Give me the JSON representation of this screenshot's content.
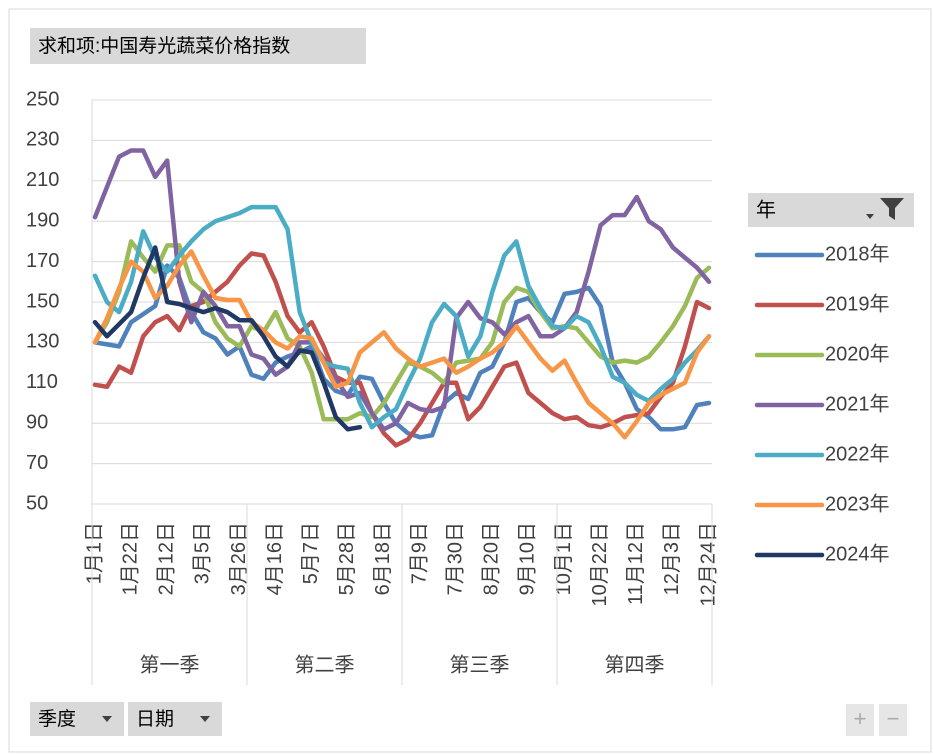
{
  "chart_data": {
    "type": "line",
    "title": "求和项:中国寿光蔬菜价格指数",
    "legend_title": "年",
    "legend": "right",
    "field_buttons": [
      "季度",
      "日期"
    ],
    "quarters": [
      "第一季",
      "第二季",
      "第三季",
      "第四季"
    ],
    "categories": [
      "1月1日",
      null,
      null,
      "1月22日",
      null,
      null,
      "2月12日",
      null,
      null,
      "3月5日",
      null,
      null,
      "3月26日",
      null,
      null,
      "4月16日",
      null,
      null,
      "5月7日",
      null,
      null,
      "5月28日",
      null,
      null,
      "6月18日",
      null,
      null,
      "7月9日",
      null,
      null,
      "7月30日",
      null,
      null,
      "8月20日",
      null,
      null,
      "9月10日",
      null,
      null,
      "10月1日",
      null,
      null,
      "10月22日",
      null,
      null,
      "11月12日",
      null,
      null,
      "12月3日",
      null,
      null,
      "12月24日"
    ],
    "ylim": [
      50,
      250
    ],
    "yticks": [
      50,
      70,
      90,
      110,
      130,
      150,
      170,
      190,
      210,
      230,
      250
    ],
    "grid": true,
    "series": [
      {
        "name": "2018年",
        "color": "#4f81bd",
        "values": [
          130,
          129,
          128,
          140,
          144,
          148,
          168,
          162,
          145,
          135,
          132,
          124,
          128,
          114,
          112,
          120,
          123,
          125,
          128,
          112,
          106,
          104,
          113,
          112,
          100,
          90,
          85,
          83,
          84,
          100,
          105,
          102,
          115,
          118,
          130,
          150,
          152,
          145,
          140,
          154,
          155,
          157,
          148,
          120,
          110,
          97,
          93,
          87,
          87,
          88,
          99,
          100
        ]
      },
      {
        "name": "2019年",
        "color": "#c0504d",
        "values": [
          109,
          108,
          118,
          115,
          133,
          140,
          143,
          136,
          148,
          150,
          155,
          160,
          168,
          174,
          173,
          160,
          143,
          135,
          140,
          128,
          113,
          110,
          110,
          95,
          85,
          79,
          82,
          90,
          100,
          110,
          110,
          92,
          98,
          108,
          118,
          120,
          105,
          100,
          95,
          92,
          93,
          89,
          88,
          90,
          93,
          94,
          95,
          103,
          110,
          128,
          150,
          147
        ]
      },
      {
        "name": "2020年",
        "color": "#9bbb59",
        "values": [
          130,
          140,
          155,
          180,
          172,
          165,
          178,
          178,
          160,
          155,
          140,
          132,
          128,
          138,
          135,
          145,
          132,
          128,
          115,
          92,
          92,
          92,
          95,
          93,
          100,
          110,
          120,
          118,
          115,
          110,
          120,
          121,
          122,
          130,
          150,
          157,
          155,
          145,
          137,
          138,
          137,
          130,
          123,
          120,
          121,
          120,
          123,
          130,
          138,
          148,
          162,
          167
        ]
      },
      {
        "name": "2021年",
        "color": "#8064a2",
        "values": [
          192,
          207,
          222,
          225,
          225,
          212,
          220,
          160,
          140,
          155,
          148,
          138,
          138,
          124,
          122,
          114,
          118,
          130,
          130,
          122,
          112,
          103,
          105,
          95,
          87,
          90,
          100,
          97,
          96,
          98,
          142,
          150,
          142,
          140,
          134,
          140,
          143,
          133,
          133,
          137,
          145,
          165,
          188,
          193,
          193,
          202,
          190,
          186,
          177,
          172,
          167,
          160
        ]
      },
      {
        "name": "2022年",
        "color": "#4bacc6",
        "values": [
          163,
          150,
          145,
          160,
          185,
          172,
          165,
          173,
          180,
          186,
          190,
          192,
          194,
          197,
          197,
          197,
          186,
          145,
          130,
          120,
          118,
          117,
          100,
          88,
          93,
          97,
          110,
          122,
          140,
          149,
          143,
          123,
          133,
          155,
          173,
          180,
          158,
          147,
          138,
          137,
          143,
          140,
          128,
          113,
          110,
          104,
          101,
          107,
          112,
          120,
          126,
          133
        ]
      },
      {
        "name": "2023年",
        "color": "#f79646",
        "values": [
          130,
          142,
          157,
          170,
          165,
          152,
          158,
          168,
          175,
          163,
          152,
          151,
          151,
          140,
          136,
          130,
          127,
          133,
          132,
          120,
          108,
          110,
          125,
          130,
          135,
          127,
          122,
          118,
          120,
          122,
          115,
          118,
          122,
          125,
          130,
          138,
          130,
          122,
          116,
          121,
          110,
          100,
          95,
          90,
          83,
          91,
          100,
          104,
          107,
          110,
          125,
          133
        ]
      },
      {
        "name": "2024年",
        "color": "#1f3864",
        "values": [
          140,
          133,
          139,
          145,
          162,
          177,
          150,
          149,
          147,
          145,
          147,
          145,
          141,
          141,
          133,
          123,
          118,
          126,
          125,
          110,
          93,
          87,
          88,
          null,
          null,
          null,
          null,
          null,
          null,
          null,
          null,
          null,
          null,
          null,
          null,
          null,
          null,
          null,
          null,
          null,
          null,
          null,
          null,
          null,
          null,
          null,
          null,
          null,
          null,
          null,
          null,
          null
        ]
      }
    ]
  }
}
